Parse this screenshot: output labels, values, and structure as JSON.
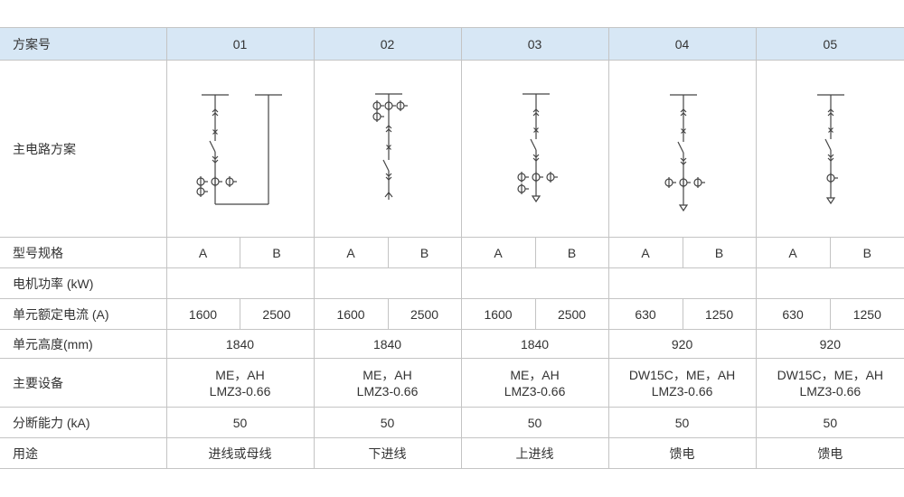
{
  "header": {
    "label": "方案号",
    "schemes": [
      "01",
      "02",
      "03",
      "04",
      "05"
    ]
  },
  "diagram_row": {
    "label": "主电路方案"
  },
  "type_row": {
    "label": "型号规格",
    "values": [
      "A",
      "B",
      "A",
      "B",
      "A",
      "B",
      "A",
      "B",
      "A",
      "B"
    ]
  },
  "power_row": {
    "label": "电机功率 (kW)"
  },
  "current_row": {
    "label": "单元额定电流 (A)",
    "values": [
      "1600",
      "2500",
      "1600",
      "2500",
      "1600",
      "2500",
      "630",
      "1250",
      "630",
      "1250"
    ]
  },
  "height_row": {
    "label": "单元高度(mm)",
    "values": [
      "1840",
      "1840",
      "1840",
      "920",
      "920"
    ]
  },
  "equipment_row": {
    "label": "主要设备",
    "values": [
      [
        "ME，AH",
        "LMZ3-0.66"
      ],
      [
        "ME，AH",
        "LMZ3-0.66"
      ],
      [
        "ME，AH",
        "LMZ3-0.66"
      ],
      [
        "DW15C，ME，AH",
        "LMZ3-0.66"
      ],
      [
        "DW15C，ME，AH",
        "LMZ3-0.66"
      ]
    ]
  },
  "breaking_row": {
    "label": "分断能力 (kA)",
    "values": [
      "50",
      "50",
      "50",
      "50",
      "50"
    ]
  },
  "use_row": {
    "label": "用途",
    "values": [
      "进线或母线",
      "下进线",
      "上进线",
      "馈电",
      "馈电"
    ]
  },
  "colors": {
    "header_bg": "#d7e7f5",
    "border": "#c4c4c4",
    "line": "#444444"
  }
}
